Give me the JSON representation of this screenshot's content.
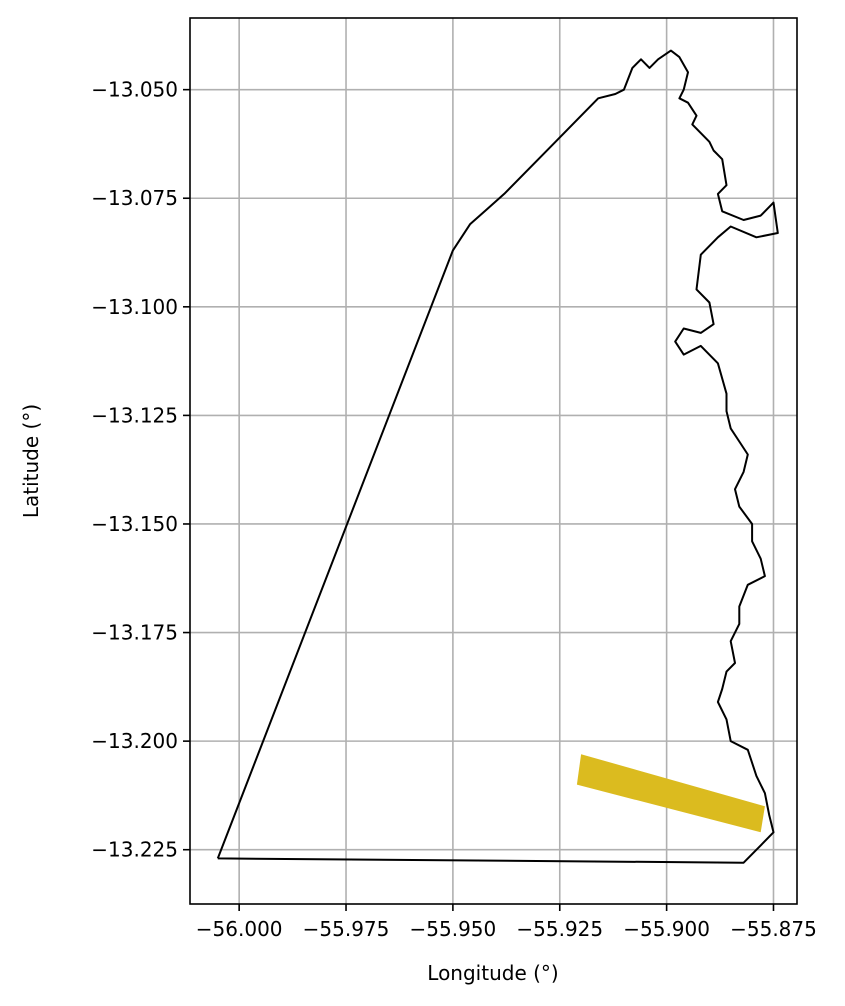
{
  "chart_data": {
    "type": "map",
    "xlabel": "Longitude (°)",
    "ylabel": "Latitude (°)",
    "xlim": [
      -56.0115,
      -55.8695
    ],
    "ylim": [
      -13.2375,
      -13.0335
    ],
    "grid": true,
    "x_ticks": [
      {
        "value": -56.0,
        "label": "−56.000"
      },
      {
        "value": -55.975,
        "label": "−55.975"
      },
      {
        "value": -55.95,
        "label": "−55.950"
      },
      {
        "value": -55.925,
        "label": "−55.925"
      },
      {
        "value": -55.9,
        "label": "−55.900"
      },
      {
        "value": -55.875,
        "label": "−55.875"
      }
    ],
    "y_ticks": [
      {
        "value": -13.05,
        "label": "−13.050"
      },
      {
        "value": -13.075,
        "label": "−13.075"
      },
      {
        "value": -13.1,
        "label": "−13.100"
      },
      {
        "value": -13.125,
        "label": "−13.125"
      },
      {
        "value": -13.15,
        "label": "−13.150"
      },
      {
        "value": -13.175,
        "label": "−13.175"
      },
      {
        "value": -13.2,
        "label": "−13.200"
      },
      {
        "value": -13.225,
        "label": "−13.225"
      }
    ],
    "boundary": {
      "color": "#000000",
      "coords": [
        [
          -56.005,
          -13.227
        ],
        [
          -55.95,
          -13.087
        ],
        [
          -55.946,
          -13.081
        ],
        [
          -55.942,
          -13.0775
        ],
        [
          -55.938,
          -13.074
        ],
        [
          -55.926,
          -13.062
        ],
        [
          -55.916,
          -13.052
        ],
        [
          -55.912,
          -13.051
        ],
        [
          -55.91,
          -13.05
        ],
        [
          -55.908,
          -13.045
        ],
        [
          -55.906,
          -13.043
        ],
        [
          -55.904,
          -13.045
        ],
        [
          -55.902,
          -13.043
        ],
        [
          -55.899,
          -13.041
        ],
        [
          -55.897,
          -13.0425
        ],
        [
          -55.895,
          -13.046
        ],
        [
          -55.896,
          -13.05
        ],
        [
          -55.897,
          -13.052
        ],
        [
          -55.895,
          -13.053
        ],
        [
          -55.893,
          -13.056
        ],
        [
          -55.894,
          -13.058
        ],
        [
          -55.892,
          -13.06
        ],
        [
          -55.89,
          -13.062
        ],
        [
          -55.889,
          -13.064
        ],
        [
          -55.887,
          -13.066
        ],
        [
          -55.886,
          -13.072
        ],
        [
          -55.888,
          -13.074
        ],
        [
          -55.887,
          -13.078
        ],
        [
          -55.882,
          -13.08
        ],
        [
          -55.878,
          -13.079
        ],
        [
          -55.875,
          -13.076
        ],
        [
          -55.874,
          -13.083
        ],
        [
          -55.879,
          -13.084
        ],
        [
          -55.885,
          -13.0815
        ],
        [
          -55.888,
          -13.084
        ],
        [
          -55.892,
          -13.088
        ],
        [
          -55.893,
          -13.096
        ],
        [
          -55.89,
          -13.099
        ],
        [
          -55.889,
          -13.104
        ],
        [
          -55.892,
          -13.106
        ],
        [
          -55.896,
          -13.105
        ],
        [
          -55.898,
          -13.108
        ],
        [
          -55.896,
          -13.111
        ],
        [
          -55.892,
          -13.109
        ],
        [
          -55.888,
          -13.113
        ],
        [
          -55.886,
          -13.12
        ],
        [
          -55.886,
          -13.124
        ],
        [
          -55.885,
          -13.128
        ],
        [
          -55.883,
          -13.131
        ],
        [
          -55.881,
          -13.134
        ],
        [
          -55.882,
          -13.138
        ],
        [
          -55.884,
          -13.142
        ],
        [
          -55.883,
          -13.146
        ],
        [
          -55.88,
          -13.15
        ],
        [
          -55.88,
          -13.154
        ],
        [
          -55.878,
          -13.158
        ],
        [
          -55.877,
          -13.162
        ],
        [
          -55.881,
          -13.164
        ],
        [
          -55.883,
          -13.169
        ],
        [
          -55.883,
          -13.173
        ],
        [
          -55.885,
          -13.177
        ],
        [
          -55.884,
          -13.182
        ],
        [
          -55.886,
          -13.184
        ],
        [
          -55.887,
          -13.188
        ],
        [
          -55.888,
          -13.191
        ],
        [
          -55.886,
          -13.195
        ],
        [
          -55.885,
          -13.2
        ],
        [
          -55.881,
          -13.202
        ],
        [
          -55.879,
          -13.208
        ],
        [
          -55.877,
          -13.212
        ],
        [
          -55.876,
          -13.217
        ],
        [
          -55.875,
          -13.221
        ],
        [
          -55.878,
          -13.224
        ],
        [
          -55.882,
          -13.228
        ],
        [
          -56.005,
          -13.227
        ]
      ]
    },
    "highlight": {
      "color": "#dbbb1f",
      "polygon": [
        [
          -55.92,
          -13.203
        ],
        [
          -55.877,
          -13.215
        ],
        [
          -55.878,
          -13.221
        ],
        [
          -55.921,
          -13.21
        ]
      ]
    }
  }
}
